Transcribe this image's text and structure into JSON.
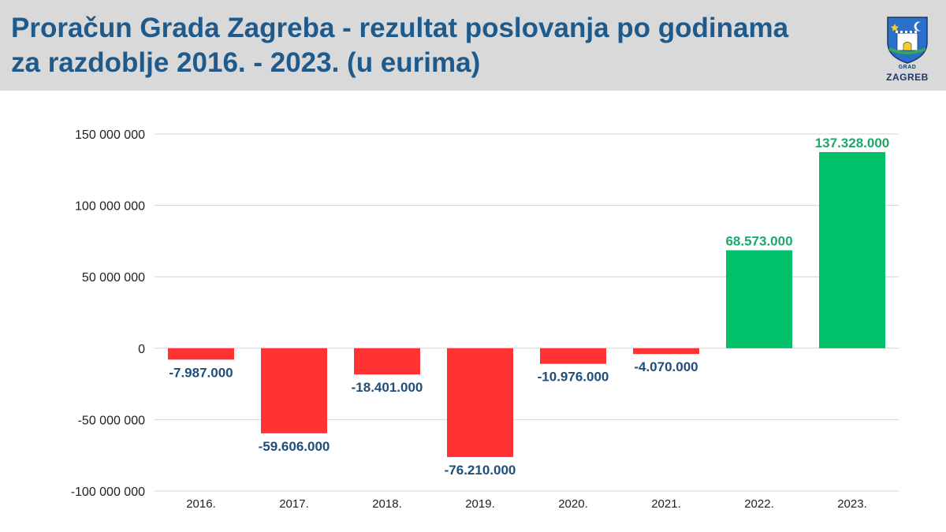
{
  "header": {
    "title_line1": "Proračun Grada Zagreba - rezultat poslovanja po godinama",
    "title_line2": "za razdoblje 2016. - 2023. (u eurima)",
    "logo_text_small": "GRAD",
    "logo_text_large": "ZAGREB"
  },
  "colors": {
    "negative": "#ff3333",
    "positive": "#00c06a",
    "negative_label": "#1f4e79",
    "positive_label": "#1aa968",
    "title": "#1f5a8c",
    "header_bg": "#d9d9d9"
  },
  "chart_data": {
    "type": "bar",
    "categories": [
      "2016.",
      "2017.",
      "2018.",
      "2019.",
      "2020.",
      "2021.",
      "2022.",
      "2023."
    ],
    "values": [
      -7987000,
      -59606000,
      -18401000,
      -76210000,
      -10976000,
      -4070000,
      68573000,
      137328000
    ],
    "data_labels": [
      "-7.987.000",
      "-59.606.000",
      "-18.401.000",
      "-76.210.000",
      "-10.976.000",
      "-4.070.000",
      "68.573.000",
      "137.328.000"
    ],
    "y_ticks": [
      150000000,
      100000000,
      50000000,
      0,
      -50000000,
      -100000000
    ],
    "y_tick_labels": [
      "150 000 000",
      "100 000 000",
      "50 000 000",
      "0",
      "-50 000 000",
      "-100 000 000"
    ],
    "ylim": [
      -100000000,
      150000000
    ],
    "grid": true,
    "legend": "none"
  }
}
